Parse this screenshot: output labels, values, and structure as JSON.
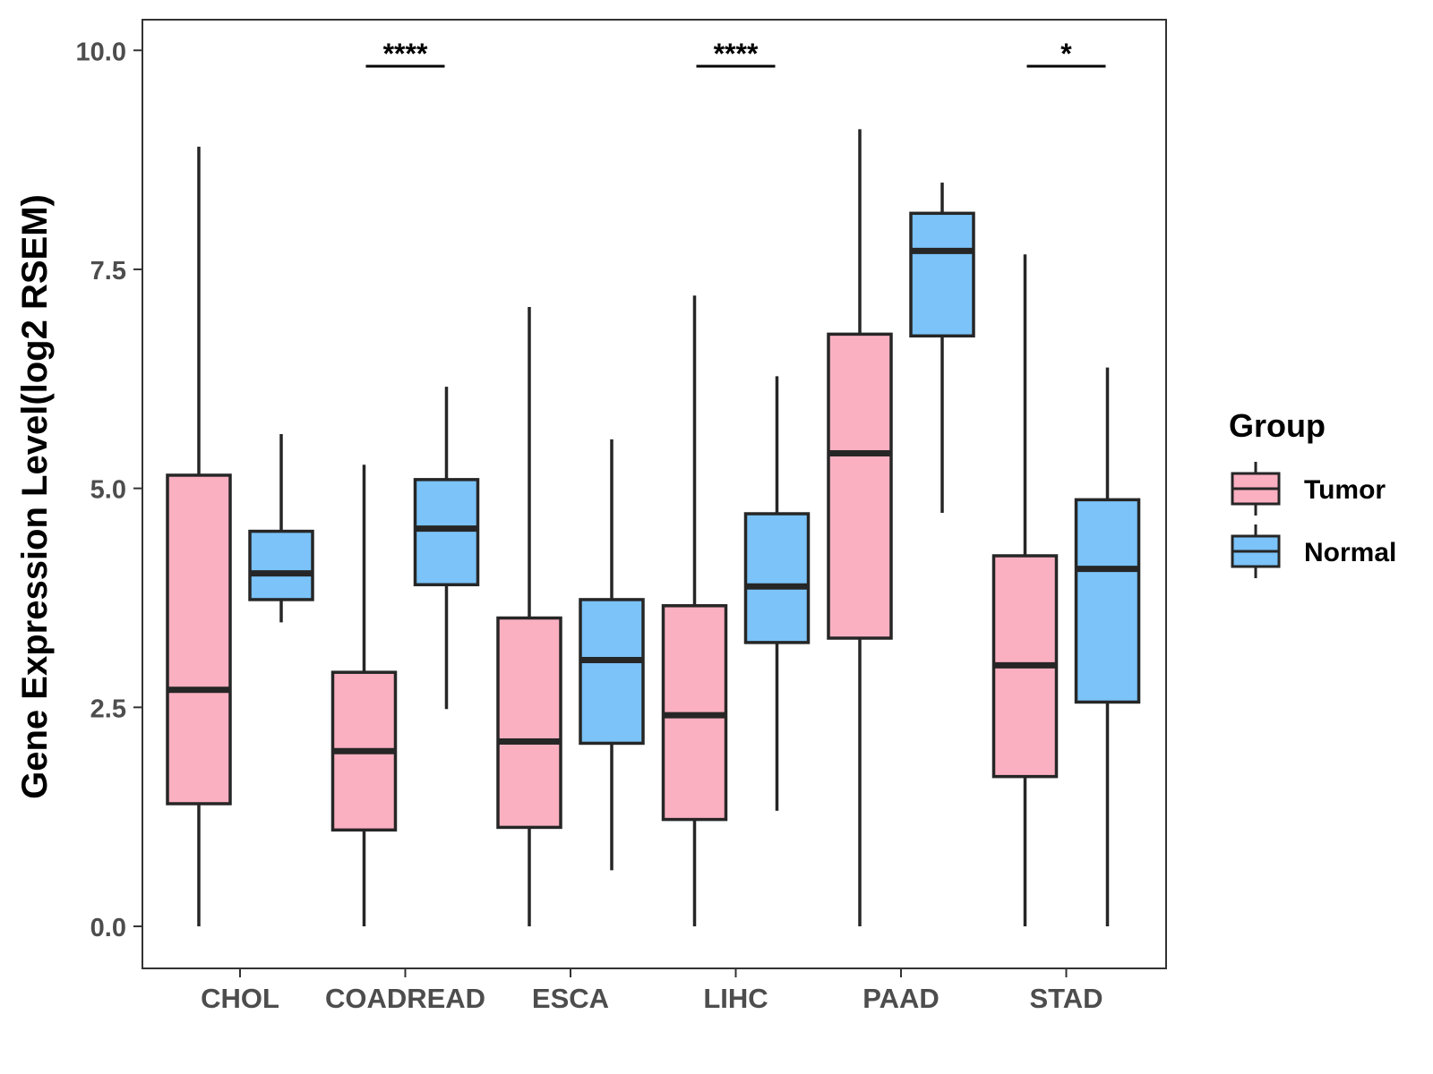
{
  "chart_data": {
    "type": "boxplot",
    "title": "",
    "xlabel": "",
    "ylabel": "Gene Expression Level(log2 RSEM)",
    "ylim": [
      -0.48,
      10.35
    ],
    "yticks": [
      "0.0",
      "2.5",
      "5.0",
      "7.5",
      "10.0"
    ],
    "ytick_values": [
      0,
      2.5,
      5,
      7.5,
      10
    ],
    "categories": [
      "CHOL",
      "COADREAD",
      "ESCA",
      "LIHC",
      "PAAD",
      "STAD"
    ],
    "series": [
      {
        "name": "Tumor",
        "color": "#fbb0c1",
        "boxes": [
          {
            "min": 0.0,
            "q1": 1.4,
            "median": 2.7,
            "q3": 5.15,
            "max": 8.9
          },
          {
            "min": 0.0,
            "q1": 1.1,
            "median": 2.0,
            "q3": 2.9,
            "max": 5.27
          },
          {
            "min": 0.0,
            "q1": 1.13,
            "median": 2.11,
            "q3": 3.52,
            "max": 7.07
          },
          {
            "min": 0.0,
            "q1": 1.22,
            "median": 2.41,
            "q3": 3.66,
            "max": 7.2
          },
          {
            "min": 0.0,
            "q1": 3.29,
            "median": 5.4,
            "q3": 6.76,
            "max": 9.1
          },
          {
            "min": 0.0,
            "q1": 1.71,
            "median": 2.98,
            "q3": 4.23,
            "max": 7.67
          }
        ]
      },
      {
        "name": "Normal",
        "color": "#7bc3f8",
        "boxes": [
          {
            "min": 3.47,
            "q1": 3.73,
            "median": 4.03,
            "q3": 4.51,
            "max": 5.62
          },
          {
            "min": 2.48,
            "q1": 3.9,
            "median": 4.54,
            "q3": 5.1,
            "max": 6.16
          },
          {
            "min": 0.64,
            "q1": 2.09,
            "median": 3.04,
            "q3": 3.73,
            "max": 5.56
          },
          {
            "min": 1.32,
            "q1": 3.24,
            "median": 3.88,
            "q3": 4.71,
            "max": 6.28
          },
          {
            "min": 4.72,
            "q1": 6.74,
            "median": 7.71,
            "q3": 8.14,
            "max": 8.49
          },
          {
            "min": 0.0,
            "q1": 2.56,
            "median": 4.08,
            "q3": 4.87,
            "max": 6.38
          }
        ]
      }
    ],
    "significance": [
      {
        "category": "COADREAD",
        "label": "****"
      },
      {
        "category": "LIHC",
        "label": "****"
      },
      {
        "category": "STAD",
        "label": "*"
      }
    ],
    "legend": {
      "title": "Group",
      "position": "right",
      "items": [
        "Tumor",
        "Normal"
      ]
    },
    "colors": {
      "tumor": "#fbb0c1",
      "normal": "#7bc3f8",
      "outline": "#262626",
      "axis": "#333333",
      "text": "#4d4d4d"
    }
  }
}
